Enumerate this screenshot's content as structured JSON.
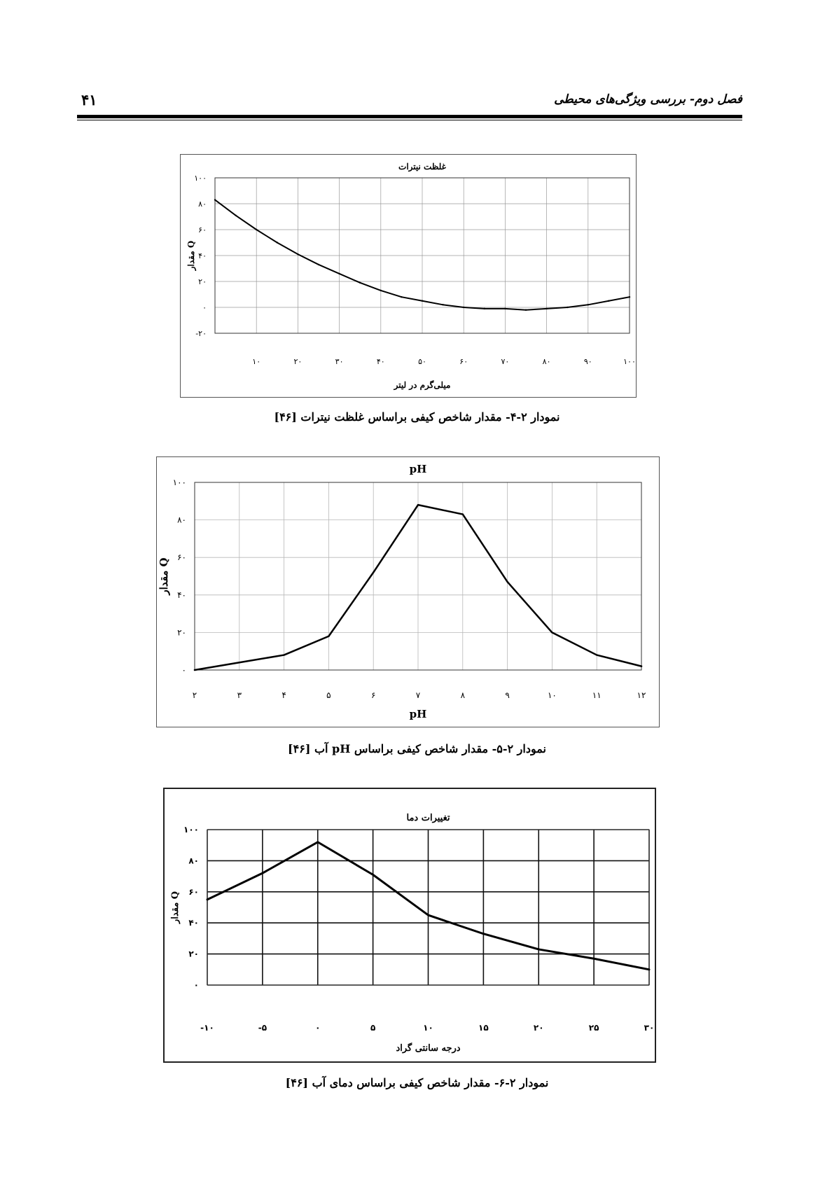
{
  "header": {
    "page_number": "۴۱",
    "chapter_title": "فصل دوم- بررسی ویژگی‌های محیطی"
  },
  "captions": {
    "fig1": "نمودار ۲-۴- مقدار شاخص کیفی براساس غلظت نیترات [۴۶]",
    "fig2": "نمودار ۲-۵- مقدار شاخص کیفی براساس pH آب [۴۶]",
    "fig3": "نمودار ۲-۶- مقدار شاخص کیفی براساس دمای آب [۴۶]"
  },
  "chart_data": [
    {
      "type": "line",
      "title": "غلظت نیترات",
      "xlabel": "میلی‌گرم در لیتر",
      "ylabel": "مقدار Q",
      "xlim": [
        0,
        100
      ],
      "ylim": [
        -20,
        100
      ],
      "x_ticks": [
        0,
        10,
        20,
        30,
        40,
        50,
        60,
        70,
        80,
        90,
        100
      ],
      "x_tick_labels": [
        "",
        "۱۰",
        "۲۰",
        "۳۰",
        "۴۰",
        "۵۰",
        "۶۰",
        "۷۰",
        "۸۰",
        "۹۰",
        "۱۰۰"
      ],
      "y_ticks": [
        -20,
        0,
        20,
        40,
        60,
        80,
        100
      ],
      "y_tick_labels": [
        "-۲۰",
        "۰",
        "۲۰",
        "۴۰",
        "۶۰",
        "۸۰",
        "۱۰۰"
      ],
      "grid": true,
      "x": [
        0,
        5,
        10,
        15,
        20,
        25,
        30,
        35,
        40,
        45,
        50,
        55,
        60,
        65,
        70,
        75,
        80,
        85,
        90,
        95,
        100
      ],
      "y": [
        83,
        71,
        60,
        50,
        41,
        33,
        26,
        19,
        13,
        8,
        5,
        2,
        0,
        -1,
        -1,
        -2,
        -1,
        0,
        2,
        5,
        8
      ]
    },
    {
      "type": "line",
      "title": "pH",
      "xlabel": "pH",
      "ylabel": "مقدار Q",
      "xlim": [
        2,
        12
      ],
      "ylim": [
        0,
        100
      ],
      "x_ticks": [
        2,
        3,
        4,
        5,
        6,
        7,
        8,
        9,
        10,
        11,
        12
      ],
      "x_tick_labels": [
        "۲",
        "۳",
        "۴",
        "۵",
        "۶",
        "۷",
        "۸",
        "۹",
        "۱۰",
        "۱۱",
        "۱۲"
      ],
      "y_ticks": [
        0,
        20,
        40,
        60,
        80,
        100
      ],
      "y_tick_labels": [
        "۰",
        "۲۰",
        "۴۰",
        "۶۰",
        "۸۰",
        "۱۰۰"
      ],
      "grid": true,
      "x": [
        2,
        3,
        4,
        5,
        6,
        7,
        8,
        9,
        10,
        11,
        12
      ],
      "y": [
        0,
        4,
        8,
        18,
        52,
        88,
        83,
        47,
        20,
        8,
        2
      ]
    },
    {
      "type": "line",
      "title": "تغییرات دما",
      "xlabel": "درجه سانتی گراد",
      "ylabel": "مقدار Q",
      "xlim": [
        -10,
        30
      ],
      "ylim": [
        0,
        100
      ],
      "x_ticks": [
        -10,
        -5,
        0,
        5,
        10,
        15,
        20,
        25,
        30
      ],
      "x_tick_labels": [
        "-۱۰",
        "-۵",
        "۰",
        "۵",
        "۱۰",
        "۱۵",
        "۲۰",
        "۲۵",
        "۳۰"
      ],
      "y_ticks": [
        0,
        20,
        40,
        60,
        80,
        100
      ],
      "y_tick_labels": [
        "۰",
        "۲۰",
        "۴۰",
        "۶۰",
        "۸۰",
        "۱۰۰"
      ],
      "grid": true,
      "x": [
        -10,
        -5,
        0,
        5,
        10,
        15,
        20,
        25,
        30
      ],
      "y": [
        55,
        72,
        92,
        71,
        45,
        33,
        23,
        17,
        10
      ]
    }
  ]
}
